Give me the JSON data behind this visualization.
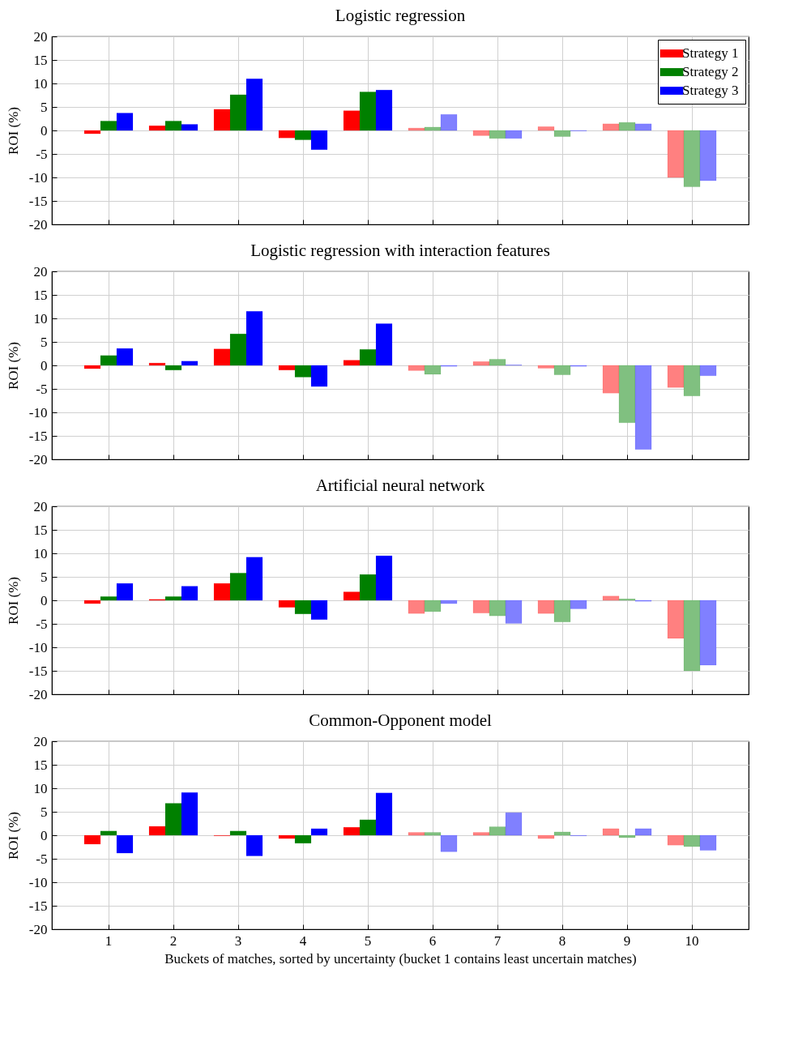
{
  "chart_data": [
    {
      "type": "bar",
      "title": "Logistic regression",
      "ylabel": "ROI (%)",
      "categories": [
        "1",
        "2",
        "3",
        "4",
        "5",
        "6",
        "7",
        "8",
        "9",
        "10"
      ],
      "ylim": [
        -20,
        20
      ],
      "yticks": [
        -20,
        -15,
        -10,
        -5,
        0,
        5,
        10,
        15,
        20
      ],
      "grid": true,
      "legend": "top right",
      "tick_labels": "y",
      "series": [
        {
          "name": "Strategy 1",
          "color": "#ff0000",
          "colors": [
            "#ff0000",
            "#ff0000",
            "#ff0000",
            "#ff0000",
            "#ff0000",
            "#ff8080",
            "#ff8080",
            "#ff8080",
            "#ff8080",
            "#ff8080"
          ],
          "values": [
            -0.7,
            1.0,
            4.5,
            -1.6,
            4.2,
            0.5,
            -1.1,
            0.8,
            1.4,
            -10.0
          ]
        },
        {
          "name": "Strategy 2",
          "color": "#008000",
          "colors": [
            "#008000",
            "#008000",
            "#008000",
            "#008000",
            "#008000",
            "#80c080",
            "#80c080",
            "#80c080",
            "#80c080",
            "#80c080"
          ],
          "values": [
            2.0,
            2.0,
            7.6,
            -2.0,
            8.2,
            0.7,
            -1.7,
            -1.3,
            1.7,
            -12.0
          ]
        },
        {
          "name": "Strategy 3",
          "color": "#0000ff",
          "colors": [
            "#0000ff",
            "#0000ff",
            "#0000ff",
            "#0000ff",
            "#0000ff",
            "#8080ff",
            "#8080ff",
            "#8080ff",
            "#8080ff",
            "#8080ff"
          ],
          "values": [
            3.7,
            1.3,
            11.0,
            -4.1,
            8.6,
            3.4,
            -1.7,
            -0.1,
            1.4,
            -10.7
          ]
        }
      ]
    },
    {
      "type": "bar",
      "title": "Logistic regression with interaction features",
      "ylabel": "ROI (%)",
      "categories": [
        "1",
        "2",
        "3",
        "4",
        "5",
        "6",
        "7",
        "8",
        "9",
        "10"
      ],
      "ylim": [
        -20,
        20
      ],
      "yticks": [
        -20,
        -15,
        -10,
        -5,
        0,
        5,
        10,
        15,
        20
      ],
      "grid": true,
      "tick_labels": "y",
      "series": [
        {
          "color": "#ff0000",
          "colors": [
            "#ff0000",
            "#ff0000",
            "#ff0000",
            "#ff0000",
            "#ff0000",
            "#ff8080",
            "#ff8080",
            "#ff8080",
            "#ff8080",
            "#ff8080"
          ],
          "values": [
            -0.7,
            0.5,
            3.5,
            -1.0,
            1.1,
            -1.1,
            0.8,
            -0.6,
            -5.9,
            -4.7
          ]
        },
        {
          "color": "#008000",
          "colors": [
            "#008000",
            "#008000",
            "#008000",
            "#008000",
            "#008000",
            "#80c080",
            "#80c080",
            "#80c080",
            "#80c080",
            "#80c080"
          ],
          "values": [
            2.1,
            -1.0,
            6.7,
            -2.5,
            3.4,
            -1.9,
            1.3,
            -2.0,
            -12.2,
            -6.5
          ]
        },
        {
          "color": "#0000ff",
          "colors": [
            "#0000ff",
            "#0000ff",
            "#0000ff",
            "#0000ff",
            "#0000ff",
            "#8080ff",
            "#8080ff",
            "#8080ff",
            "#8080ff",
            "#8080ff"
          ],
          "values": [
            3.6,
            0.9,
            11.5,
            -4.5,
            8.9,
            -0.2,
            0.1,
            -0.2,
            -17.9,
            -2.2
          ]
        }
      ]
    },
    {
      "type": "bar",
      "title": "Artificial neural network",
      "ylabel": "ROI (%)",
      "categories": [
        "1",
        "2",
        "3",
        "4",
        "5",
        "6",
        "7",
        "8",
        "9",
        "10"
      ],
      "ylim": [
        -20,
        20
      ],
      "yticks": [
        -20,
        -15,
        -10,
        -5,
        0,
        5,
        10,
        15,
        20
      ],
      "grid": true,
      "tick_labels": "y",
      "series": [
        {
          "color": "#ff0000",
          "colors": [
            "#ff0000",
            "#ff0000",
            "#ff0000",
            "#ff0000",
            "#ff0000",
            "#ff8080",
            "#ff8080",
            "#ff8080",
            "#ff8080",
            "#ff8080"
          ],
          "values": [
            -0.7,
            0.2,
            3.6,
            -1.5,
            1.8,
            -2.8,
            -2.7,
            -2.8,
            0.9,
            -8.1
          ]
        },
        {
          "color": "#008000",
          "colors": [
            "#008000",
            "#008000",
            "#008000",
            "#008000",
            "#008000",
            "#80c080",
            "#80c080",
            "#80c080",
            "#80c080",
            "#80c080"
          ],
          "values": [
            0.8,
            0.8,
            5.8,
            -2.9,
            5.5,
            -2.4,
            -3.3,
            -4.6,
            0.3,
            -15.0
          ]
        },
        {
          "color": "#0000ff",
          "colors": [
            "#0000ff",
            "#0000ff",
            "#0000ff",
            "#0000ff",
            "#0000ff",
            "#8080ff",
            "#8080ff",
            "#8080ff",
            "#8080ff",
            "#8080ff"
          ],
          "values": [
            3.6,
            3.0,
            9.2,
            -4.1,
            9.5,
            -0.7,
            -4.9,
            -1.8,
            -0.2,
            -13.8
          ]
        }
      ]
    },
    {
      "type": "bar",
      "title": "Common-Opponent model",
      "ylabel": "ROI (%)",
      "xlabel": "Buckets of matches, sorted by uncertainty (bucket 1 contains least uncertain matches)",
      "categories": [
        "1",
        "2",
        "3",
        "4",
        "5",
        "6",
        "7",
        "8",
        "9",
        "10"
      ],
      "ylim": [
        -20,
        20
      ],
      "yticks": [
        -20,
        -15,
        -10,
        -5,
        0,
        5,
        10,
        15,
        20
      ],
      "grid": true,
      "series": [
        {
          "color": "#ff0000",
          "colors": [
            "#ff0000",
            "#ff0000",
            "#ff0000",
            "#ff0000",
            "#ff0000",
            "#ff8080",
            "#ff8080",
            "#ff8080",
            "#ff8080",
            "#ff8080"
          ],
          "values": [
            -1.9,
            1.9,
            -0.1,
            -0.7,
            1.7,
            0.6,
            0.6,
            -0.7,
            1.4,
            -2.1
          ]
        },
        {
          "color": "#008000",
          "colors": [
            "#008000",
            "#008000",
            "#008000",
            "#008000",
            "#008000",
            "#80c080",
            "#80c080",
            "#80c080",
            "#80c080",
            "#80c080"
          ],
          "values": [
            0.9,
            6.8,
            0.9,
            -1.7,
            3.3,
            0.6,
            1.8,
            0.7,
            -0.5,
            -2.4
          ]
        },
        {
          "color": "#0000ff",
          "colors": [
            "#0000ff",
            "#0000ff",
            "#0000ff",
            "#0000ff",
            "#0000ff",
            "#8080ff",
            "#8080ff",
            "#8080ff",
            "#8080ff",
            "#8080ff"
          ],
          "values": [
            -3.8,
            9.1,
            -4.4,
            1.4,
            9.0,
            -3.5,
            4.8,
            -0.1,
            1.4,
            -3.2
          ]
        }
      ]
    }
  ]
}
